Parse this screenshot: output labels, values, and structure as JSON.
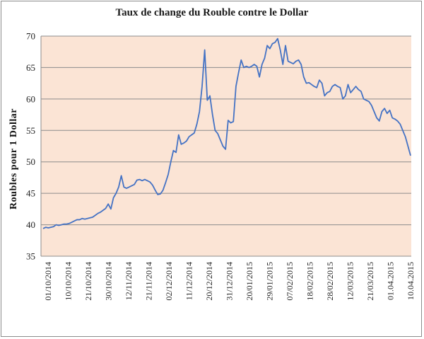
{
  "chart_data": {
    "type": "line",
    "title": "Taux de change du Rouble contre le Dollar",
    "xlabel": "",
    "ylabel": "Roubles pour 1 Dollar",
    "ylim": [
      35,
      70
    ],
    "yticks": [
      35,
      40,
      45,
      50,
      55,
      60,
      65,
      70
    ],
    "grid": true,
    "legend": "none",
    "colors": {
      "plot_background": "#fbe4d5",
      "line": "#4472c4",
      "grid": "#8c8c8c"
    },
    "x_tick_labels": [
      "01/10/2014",
      "10/10/2014",
      "21/10/2014",
      "30/10/2014",
      "12/11/2014",
      "21/11/2014",
      "02/12/2014",
      "11/12/2014",
      "20/12/2014",
      "31/12/2014",
      "20/01/2015",
      "29/01/2015",
      "07/02/2015",
      "18/02/2015",
      "28/02/2015",
      "12/03/2015",
      "21/03/2015",
      "01.04.2015",
      "10.04.2015"
    ],
    "series": [
      {
        "values": [
          39.4,
          39.6,
          39.5,
          39.6,
          39.7,
          40.0,
          39.9,
          40.0,
          40.1,
          40.1,
          40.2,
          40.4,
          40.6,
          40.8,
          40.8,
          41.0,
          40.9,
          41.0,
          41.1,
          41.2,
          41.5,
          41.8,
          42.0,
          42.3,
          42.6,
          43.3,
          42.5,
          44.3,
          45.0,
          46.0,
          47.8,
          46.0,
          45.8,
          46.0,
          46.2,
          46.4,
          47.1,
          47.2,
          47.0,
          47.2,
          47.0,
          46.8,
          46.3,
          45.5,
          44.8,
          44.9,
          45.5,
          46.7,
          48.0,
          50.0,
          51.8,
          51.5,
          54.3,
          52.8,
          53.0,
          53.3,
          54.0,
          54.3,
          54.6,
          56.0,
          58.0,
          62.0,
          67.8,
          59.8,
          60.5,
          57.5,
          55.0,
          54.5,
          53.5,
          52.5,
          52.0,
          56.6,
          56.2,
          56.4,
          62.0,
          64.2,
          66.2,
          65.0,
          65.2,
          65.0,
          65.2,
          65.5,
          65.2,
          63.5,
          65.5,
          66.5,
          68.5,
          68.0,
          68.8,
          69.0,
          69.6,
          67.8,
          65.5,
          68.5,
          66.0,
          65.8,
          65.6,
          66.0,
          66.2,
          65.5,
          63.5,
          62.5,
          62.6,
          62.3,
          62.0,
          61.8,
          63.0,
          62.5,
          60.5,
          61.0,
          61.2,
          62.0,
          62.3,
          62.0,
          61.8,
          60.0,
          60.5,
          62.3,
          61.0,
          61.5,
          62.0,
          61.5,
          61.2,
          60.0,
          59.8,
          59.6,
          59.0,
          58.0,
          57.0,
          56.5,
          58.0,
          58.5,
          57.7,
          58.2,
          57.0,
          56.8,
          56.5,
          56.0,
          55.0,
          54.0,
          52.5,
          51.0
        ]
      }
    ]
  }
}
